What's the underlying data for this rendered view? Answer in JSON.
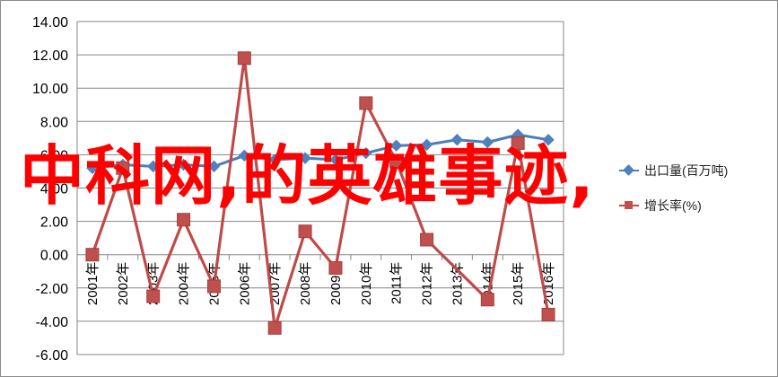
{
  "overlay_title": "中科网,的英雄事迹,",
  "colors": {
    "export_line": "#4a7ebb",
    "export_marker": "#4f81bd",
    "growth_line": "#be4b48",
    "growth_marker": "#c0504d",
    "title": "#ff0000"
  },
  "chart_data": {
    "type": "line",
    "categories": [
      "2001年",
      "2002年",
      "2003年",
      "2004年",
      "2005年",
      "2006年",
      "2007年",
      "2008年",
      "2009年",
      "2010年",
      "2011年",
      "2012年",
      "2013年",
      "2014年",
      "2015年",
      "2016年"
    ],
    "series": [
      {
        "name": "出口量(百万吨)",
        "marker": "diamond",
        "values": [
          5.2,
          5.4,
          5.3,
          5.4,
          5.3,
          5.95,
          5.7,
          5.8,
          5.7,
          6.1,
          6.55,
          6.6,
          6.9,
          6.75,
          7.2,
          6.9
        ]
      },
      {
        "name": "增长率(%)",
        "marker": "square",
        "values": [
          0.0,
          5.2,
          -2.5,
          2.1,
          -1.9,
          11.8,
          -4.4,
          1.4,
          -0.8,
          9.1,
          5.6,
          0.9,
          null,
          -2.7,
          6.7,
          -3.6
        ]
      }
    ],
    "ylim": [
      -6,
      14
    ],
    "yticks": [
      "-6.00",
      "-4.00",
      "-2.00",
      "0.00",
      "2.00",
      "4.00",
      "6.00",
      "8.00",
      "10.00",
      "12.00",
      "14.00"
    ],
    "grid": true,
    "legend_position": "right"
  }
}
